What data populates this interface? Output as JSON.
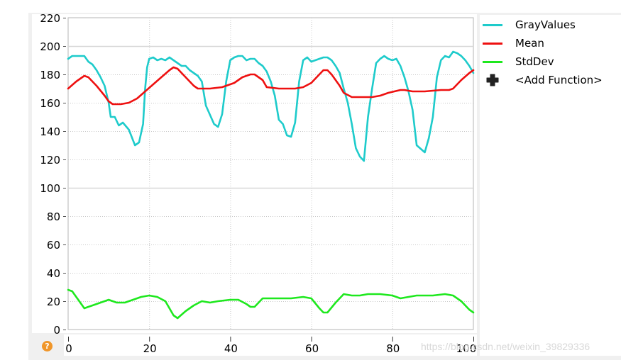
{
  "window": {
    "help_icon": "?",
    "watermark": "https://blog.csdn.net/weixin_39829336"
  },
  "legend": {
    "items": [
      {
        "label": "GrayValues",
        "color": "#1ecbcb"
      },
      {
        "label": "Mean",
        "color": "#ee1010"
      },
      {
        "label": "StdDev",
        "color": "#1ee81e"
      }
    ],
    "add_function_label": "<Add Function>"
  },
  "chart_data": {
    "type": "line",
    "title": "",
    "xlabel": "",
    "ylabel": "",
    "xlim": [
      0,
      100
    ],
    "ylim": [
      0,
      220
    ],
    "x_ticks": [
      0,
      20,
      40,
      60,
      80,
      100
    ],
    "y_ticks": [
      0,
      20,
      40,
      60,
      80,
      100,
      120,
      140,
      160,
      180,
      200,
      220
    ],
    "grid": true,
    "legend_position": "right",
    "series": [
      {
        "name": "GrayValues",
        "color": "#1ecbcb",
        "x": [
          0,
          1,
          4,
          5,
          6,
          7,
          8,
          9,
          10,
          10.5,
          11.5,
          12.5,
          13.5,
          15,
          16.5,
          17.5,
          18.5,
          19,
          19.5,
          20,
          21,
          22,
          23,
          24,
          25,
          26,
          27,
          28,
          29,
          30,
          31,
          32,
          33,
          34,
          36,
          37,
          38,
          39,
          40,
          41,
          42,
          43,
          44,
          45,
          46,
          47,
          48,
          49,
          50,
          51,
          52,
          53,
          54,
          55,
          56,
          57,
          58,
          59,
          60,
          61,
          62,
          63,
          64,
          65,
          66,
          67,
          68,
          69,
          70,
          71,
          72,
          73,
          74,
          75,
          76,
          77,
          78,
          79,
          80,
          81,
          82,
          83,
          84,
          85,
          86,
          88,
          89,
          90,
          91,
          92,
          93,
          94,
          95,
          96,
          97,
          98,
          99,
          100
        ],
        "values": [
          191,
          193,
          193,
          189,
          187,
          183,
          178,
          172,
          160,
          150,
          150,
          144,
          146,
          141,
          130,
          132,
          145,
          170,
          185,
          191,
          192,
          190,
          191,
          190,
          192,
          190,
          188,
          186,
          186,
          183,
          181,
          179,
          175,
          158,
          145,
          143,
          152,
          175,
          190,
          192,
          193,
          193,
          190,
          191,
          191,
          188,
          186,
          182,
          175,
          165,
          148,
          145,
          137,
          136,
          146,
          175,
          190,
          192,
          189,
          190,
          191,
          192,
          192,
          190,
          186,
          181,
          170,
          160,
          145,
          128,
          122,
          119,
          150,
          170,
          188,
          191,
          193,
          191,
          190,
          191,
          186,
          178,
          168,
          155,
          130,
          125,
          135,
          150,
          178,
          190,
          193,
          192,
          196,
          195,
          193,
          190,
          186,
          181
        ]
      },
      {
        "name": "Mean",
        "color": "#ee1010",
        "x": [
          0,
          2,
          4,
          5,
          7,
          9,
          10,
          11,
          13,
          15,
          17,
          19,
          21,
          23,
          25,
          26,
          27,
          29,
          31,
          32,
          35,
          38,
          41,
          43,
          45,
          46,
          48,
          49,
          52,
          56,
          58,
          60,
          62,
          63,
          64,
          65,
          67,
          68,
          70,
          72,
          75,
          77,
          79,
          82,
          83,
          85,
          88,
          92,
          94,
          95,
          97,
          99,
          100
        ],
        "values": [
          170,
          175,
          179,
          178,
          172,
          165,
          161,
          159,
          159,
          160,
          163,
          168,
          173,
          178,
          183,
          185,
          184,
          178,
          172,
          170,
          170,
          171,
          174,
          178,
          180,
          180,
          176,
          171,
          170,
          170,
          171,
          174,
          180,
          183,
          183,
          180,
          172,
          167,
          164,
          164,
          164,
          165,
          167,
          169,
          169,
          168,
          168,
          169,
          169,
          170,
          176,
          181,
          183
        ]
      },
      {
        "name": "StdDev",
        "color": "#1ee81e",
        "x": [
          0,
          1,
          4,
          6,
          8,
          10,
          12,
          14,
          16,
          18,
          20,
          22,
          24,
          26,
          27,
          29,
          31,
          33,
          35,
          37,
          40,
          42,
          44,
          45,
          46,
          48,
          50,
          55,
          58,
          60,
          62,
          63,
          64,
          66,
          68,
          70,
          72,
          74,
          77,
          80,
          82,
          84,
          86,
          90,
          93,
          95,
          97,
          99,
          100
        ],
        "values": [
          28,
          27,
          15,
          17,
          19,
          21,
          19,
          19,
          21,
          23,
          24,
          23,
          20,
          10,
          8,
          13,
          17,
          20,
          19,
          20,
          21,
          21,
          18,
          16,
          16,
          22,
          22,
          22,
          23,
          22,
          15,
          12,
          12,
          19,
          25,
          24,
          24,
          25,
          25,
          24,
          22,
          23,
          24,
          24,
          25,
          24,
          20,
          14,
          12
        ]
      }
    ]
  }
}
